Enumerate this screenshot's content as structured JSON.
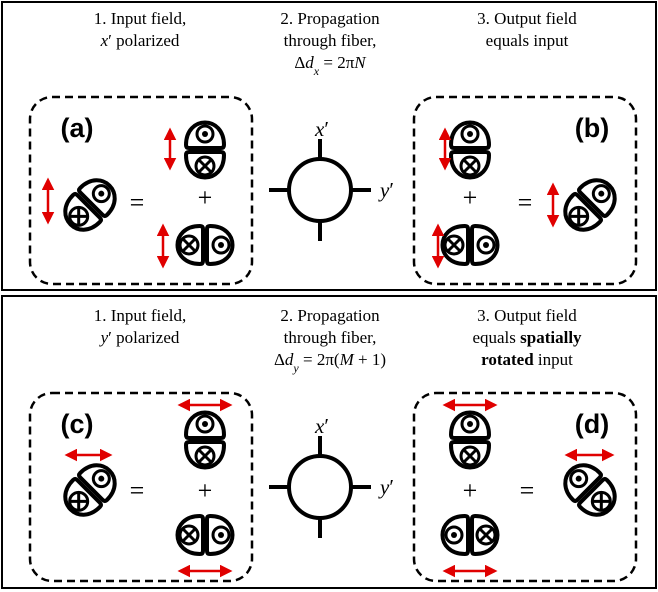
{
  "panels": [
    {
      "steps": [
        {
          "lines": [
            [
              {
                "text": "1. Input field,"
              }
            ],
            [
              {
                "text": "x",
                "style": "math"
              },
              {
                "text": "′ polarized"
              }
            ]
          ]
        },
        {
          "lines": [
            [
              {
                "text": "2. Propagation"
              }
            ],
            [
              {
                "text": "through fiber,"
              }
            ],
            [
              {
                "text": "Δ"
              },
              {
                "text": "d",
                "style": "math"
              },
              {
                "text": "x",
                "style": "sub"
              },
              {
                "text": " = 2π"
              },
              {
                "text": "N",
                "style": "math"
              }
            ]
          ]
        },
        {
          "lines": [
            [
              {
                "text": "3. Output field"
              }
            ],
            [
              {
                "text": "equals input"
              }
            ]
          ]
        }
      ],
      "boxes": [
        {
          "label": "(a)",
          "equals": "=",
          "plus": "+"
        },
        {
          "label": "(b)",
          "equals": "=",
          "plus": "+"
        }
      ],
      "fiber": {
        "top_label": [
          {
            "text": "x",
            "style": "math"
          },
          {
            "text": "′"
          }
        ],
        "right_label": [
          {
            "text": "y",
            "style": "math"
          },
          {
            "text": "′"
          }
        ]
      }
    },
    {
      "steps": [
        {
          "lines": [
            [
              {
                "text": "1. Input field,"
              }
            ],
            [
              {
                "text": "y",
                "style": "math"
              },
              {
                "text": "′ polarized"
              }
            ]
          ]
        },
        {
          "lines": [
            [
              {
                "text": "2. Propagation"
              }
            ],
            [
              {
                "text": "through fiber,"
              }
            ],
            [
              {
                "text": "Δ"
              },
              {
                "text": "d",
                "style": "math"
              },
              {
                "text": "y",
                "style": "sub"
              },
              {
                "text": " = 2π("
              },
              {
                "text": "M",
                "style": "math"
              },
              {
                "text": " + 1)"
              }
            ]
          ]
        },
        {
          "lines": [
            [
              {
                "text": "3. Output field"
              }
            ],
            [
              {
                "text": "equals "
              },
              {
                "text": "spatially",
                "style": "bold"
              }
            ],
            [
              {
                "text": "rotated",
                "style": "bold"
              },
              {
                "text": " input"
              }
            ]
          ]
        }
      ],
      "boxes": [
        {
          "label": "(c)",
          "equals": "=",
          "plus": "+"
        },
        {
          "label": "(d)",
          "equals": "=",
          "plus": "+"
        }
      ],
      "fiber": {
        "top_label": [
          {
            "text": "x",
            "style": "math"
          },
          {
            "text": "′"
          }
        ],
        "right_label": [
          {
            "text": "y",
            "style": "math"
          },
          {
            "text": "′"
          }
        ]
      }
    }
  ]
}
